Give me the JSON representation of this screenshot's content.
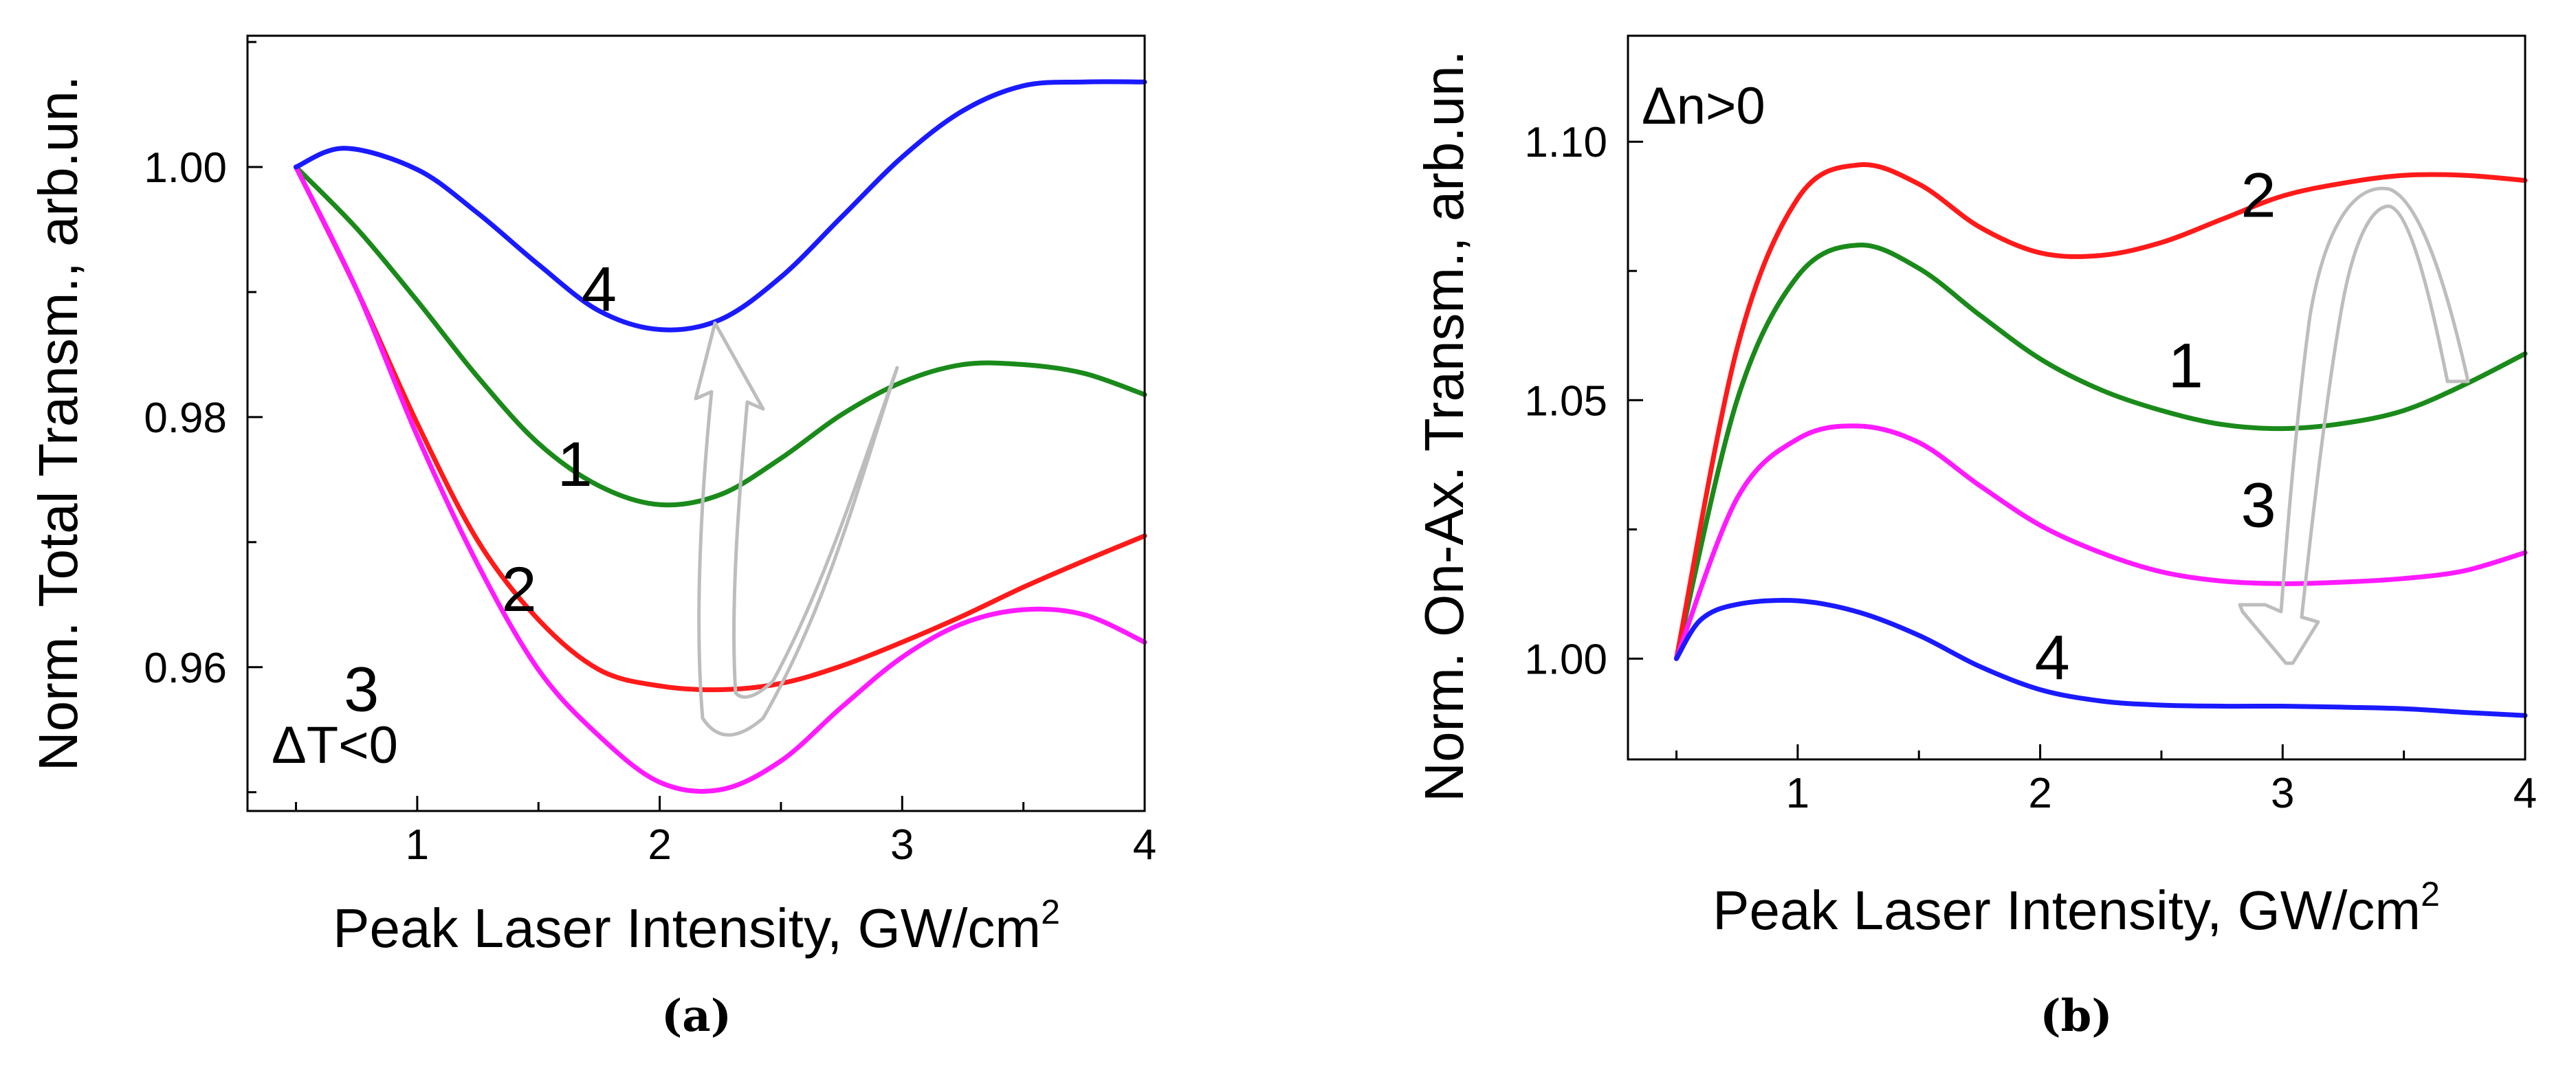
{
  "chart_data": [
    {
      "type": "line",
      "panel_label": "(a)",
      "xlabel": "Peak Laser Intensity, GW/cm",
      "xlabel_sup": "2",
      "ylabel": "Norm. Total Transm., arb.un.",
      "xlim": [
        0.3,
        4.0
      ],
      "ylim": [
        0.9485,
        1.0105
      ],
      "xticks": [
        1,
        2,
        3,
        4
      ],
      "yticks": [
        0.96,
        0.98,
        1.0
      ],
      "ytick_labels": [
        "0.96",
        "0.98",
        "1.00"
      ],
      "annotation": "ΔT<0",
      "arrow_direction": "up",
      "series": [
        {
          "name": "1",
          "color": "#1a8a1a",
          "x": [
            0.5,
            0.75,
            1.0,
            1.25,
            1.5,
            1.75,
            2.0,
            2.25,
            2.5,
            2.75,
            3.0,
            3.25,
            3.5,
            3.75,
            4.0
          ],
          "y": [
            1.0,
            0.9951,
            0.9893,
            0.9832,
            0.9779,
            0.9745,
            0.973,
            0.9738,
            0.9767,
            0.9802,
            0.9828,
            0.9842,
            0.9842,
            0.9835,
            0.9818
          ]
        },
        {
          "name": "2",
          "color": "#ff1a1a",
          "x": [
            0.5,
            0.75,
            1.0,
            1.25,
            1.5,
            1.75,
            2.0,
            2.25,
            2.5,
            2.75,
            3.0,
            3.25,
            3.5,
            3.75,
            4.0
          ],
          "y": [
            1.0,
            0.9902,
            0.9795,
            0.9701,
            0.9638,
            0.9598,
            0.9585,
            0.9582,
            0.9587,
            0.9601,
            0.962,
            0.9641,
            0.9664,
            0.9685,
            0.9705
          ]
        },
        {
          "name": "3",
          "color": "#ff1aff",
          "x": [
            0.5,
            0.75,
            1.0,
            1.25,
            1.5,
            1.75,
            2.0,
            2.25,
            2.5,
            2.75,
            3.0,
            3.25,
            3.5,
            3.75,
            4.0
          ],
          "y": [
            1.0,
            0.9902,
            0.9785,
            0.9682,
            0.9598,
            0.9545,
            0.9508,
            0.9502,
            0.9525,
            0.9568,
            0.9608,
            0.9635,
            0.9646,
            0.9642,
            0.962
          ]
        },
        {
          "name": "4",
          "color": "#1a1aff",
          "x": [
            0.5,
            0.7,
            1.0,
            1.25,
            1.5,
            1.75,
            2.0,
            2.25,
            2.5,
            2.75,
            3.0,
            3.25,
            3.5,
            3.75,
            4.0
          ],
          "y": [
            1.0,
            1.0015,
            0.9998,
            0.9963,
            0.9922,
            0.9885,
            0.987,
            0.9878,
            0.9912,
            0.996,
            1.0008,
            1.0045,
            1.0065,
            1.0068,
            1.0068
          ]
        }
      ],
      "curve_labels": [
        {
          "text": "1",
          "x": 1.65,
          "y": 0.9745
        },
        {
          "text": "2",
          "x": 1.42,
          "y": 0.9645
        },
        {
          "text": "3",
          "x": 0.77,
          "y": 0.9565
        },
        {
          "text": "4",
          "x": 1.75,
          "y": 0.9885
        }
      ]
    },
    {
      "type": "line",
      "panel_label": "(b)",
      "xlabel": "Peak Laser Intensity, GW/cm",
      "xlabel_sup": "2",
      "ylabel": "Norm. On-Ax. Transm., arb.un.",
      "xlim": [
        0.3,
        4.0
      ],
      "ylim": [
        0.9805,
        1.1205
      ],
      "xticks": [
        1,
        2,
        3,
        4
      ],
      "yticks": [
        1.0,
        1.05,
        1.1
      ],
      "ytick_labels": [
        "1.00",
        "1.05",
        "1.10"
      ],
      "annotation": "Δn>0",
      "arrow_direction": "down",
      "series": [
        {
          "name": "1",
          "color": "#1a8a1a",
          "x": [
            0.5,
            0.75,
            1.0,
            1.25,
            1.5,
            1.75,
            2.0,
            2.25,
            2.5,
            2.75,
            3.0,
            3.25,
            3.5,
            3.75,
            4.0
          ],
          "y": [
            1.0,
            1.05,
            1.074,
            1.08,
            1.0755,
            1.0665,
            1.058,
            1.052,
            1.048,
            1.0453,
            1.0445,
            1.0455,
            1.048,
            1.053,
            1.059
          ]
        },
        {
          "name": "2",
          "color": "#ff1a1a",
          "x": [
            0.5,
            0.75,
            1.0,
            1.25,
            1.5,
            1.75,
            2.0,
            2.25,
            2.5,
            2.75,
            3.0,
            3.25,
            3.5,
            3.75,
            4.0
          ],
          "y": [
            1.0,
            1.06,
            1.089,
            1.0955,
            1.0918,
            1.0835,
            1.0785,
            1.078,
            1.0805,
            1.085,
            1.0895,
            1.092,
            1.0935,
            1.0935,
            1.0925
          ]
        },
        {
          "name": "3",
          "color": "#ff1aff",
          "x": [
            0.5,
            0.75,
            1.0,
            1.25,
            1.5,
            1.75,
            2.0,
            2.25,
            2.5,
            2.75,
            3.0,
            3.25,
            3.5,
            3.75,
            4.0
          ],
          "y": [
            1.0,
            1.031,
            1.0425,
            1.045,
            1.0418,
            1.0335,
            1.0258,
            1.0205,
            1.0168,
            1.015,
            1.0145,
            1.0148,
            1.0155,
            1.017,
            1.0205
          ]
        },
        {
          "name": "4",
          "color": "#1a1aff",
          "x": [
            0.5,
            0.6,
            0.75,
            1.0,
            1.25,
            1.5,
            1.75,
            2.0,
            2.25,
            2.5,
            2.75,
            3.0,
            3.25,
            3.5,
            3.75,
            4.0
          ],
          "y": [
            1.0,
            1.0075,
            1.0105,
            1.0112,
            1.009,
            1.0045,
            0.9985,
            0.994,
            0.9918,
            0.991,
            0.9908,
            0.9908,
            0.9906,
            0.9903,
            0.9896,
            0.989
          ]
        }
      ],
      "curve_labels": [
        {
          "text": "1",
          "x": 2.6,
          "y": 1.0525
        },
        {
          "text": "2",
          "x": 2.9,
          "y": 1.0855
        },
        {
          "text": "3",
          "x": 2.9,
          "y": 1.0255
        },
        {
          "text": "4",
          "x": 2.05,
          "y": 0.996
        }
      ]
    }
  ]
}
